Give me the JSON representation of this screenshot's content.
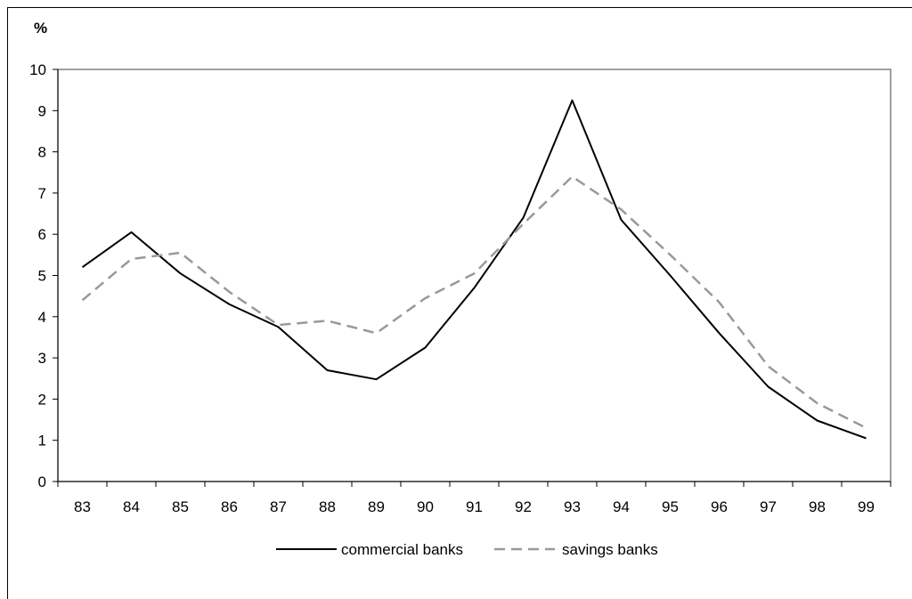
{
  "chart_data": {
    "type": "line",
    "title": "",
    "ylabel": "%",
    "xlabel": "",
    "ylim": [
      0,
      10
    ],
    "yticks": [
      "0",
      "1",
      "2",
      "3",
      "4",
      "5",
      "6",
      "7",
      "8",
      "9",
      "10"
    ],
    "categories": [
      "83",
      "84",
      "85",
      "86",
      "87",
      "88",
      "89",
      "90",
      "91",
      "92",
      "93",
      "94",
      "95",
      "96",
      "97",
      "98",
      "99"
    ],
    "legend_position": "bottom",
    "grid": false,
    "series": [
      {
        "name": "commercial banks",
        "style": "solid",
        "color": "#000000",
        "values": [
          5.2,
          6.05,
          5.05,
          4.3,
          3.75,
          2.7,
          2.48,
          3.25,
          4.7,
          6.4,
          9.25,
          6.35,
          5.0,
          3.6,
          2.3,
          1.48,
          1.05
        ]
      },
      {
        "name": "savings banks",
        "style": "dashed",
        "color": "#999999",
        "values": [
          4.4,
          5.4,
          5.55,
          4.6,
          3.8,
          3.9,
          3.6,
          4.45,
          5.05,
          6.25,
          7.4,
          6.6,
          5.5,
          4.35,
          2.8,
          1.9,
          1.3
        ]
      }
    ]
  }
}
